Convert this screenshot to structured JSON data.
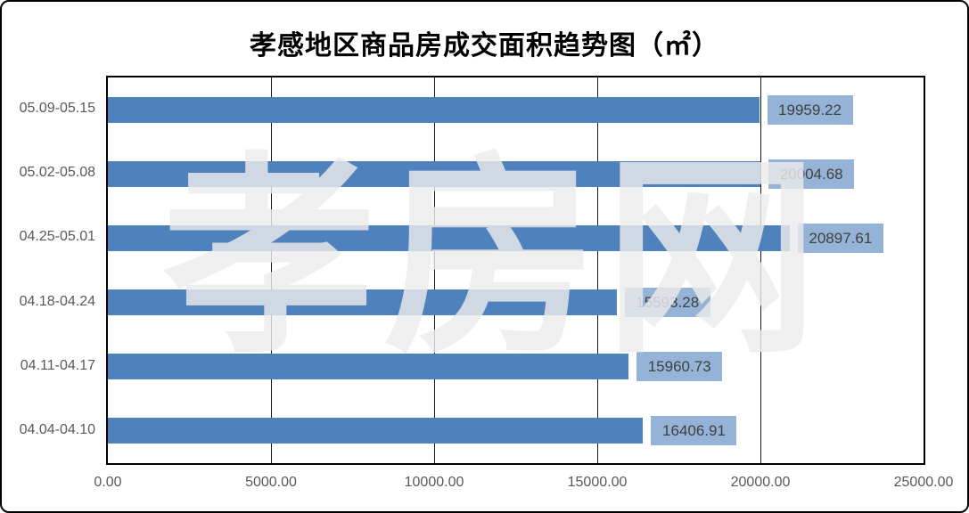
{
  "title": "孝感地区商品房成交面积趋势图（㎡）",
  "watermark": "孝房网",
  "chart_data": {
    "type": "bar",
    "orientation": "horizontal",
    "title": "孝感地区商品房成交面积趋势图（㎡）",
    "categories": [
      "05.09-05.15",
      "05.02-05.08",
      "04.25-05.01",
      "04.18-04.24",
      "04.11-04.17",
      "04.04-04.10"
    ],
    "values": [
      19959.22,
      20004.68,
      20897.61,
      15593.28,
      15960.73,
      16406.91
    ],
    "value_labels": [
      "19959.22",
      "20004.68",
      "20897.61",
      "15593.28",
      "15960.73",
      "16406.91"
    ],
    "xlim": [
      0,
      25000
    ],
    "x_ticks": [
      "0.00",
      "5000.00",
      "10000.00",
      "15000.00",
      "20000.00",
      "25000.00"
    ],
    "x_tick_values": [
      0,
      5000,
      10000,
      15000,
      20000,
      25000
    ],
    "xlabel": "",
    "ylabel": "",
    "grid": "vertical gridlines at each x tick",
    "legend": "none",
    "colors": {
      "bar": "#4f81bd",
      "label_box": "#95b3d7",
      "label_text": "#404040",
      "axis_text": "#595959",
      "plot_border": "#000000",
      "gridline": "#1a1a1a",
      "watermark_overlay": "rgba(235,235,235,0.82)"
    }
  }
}
